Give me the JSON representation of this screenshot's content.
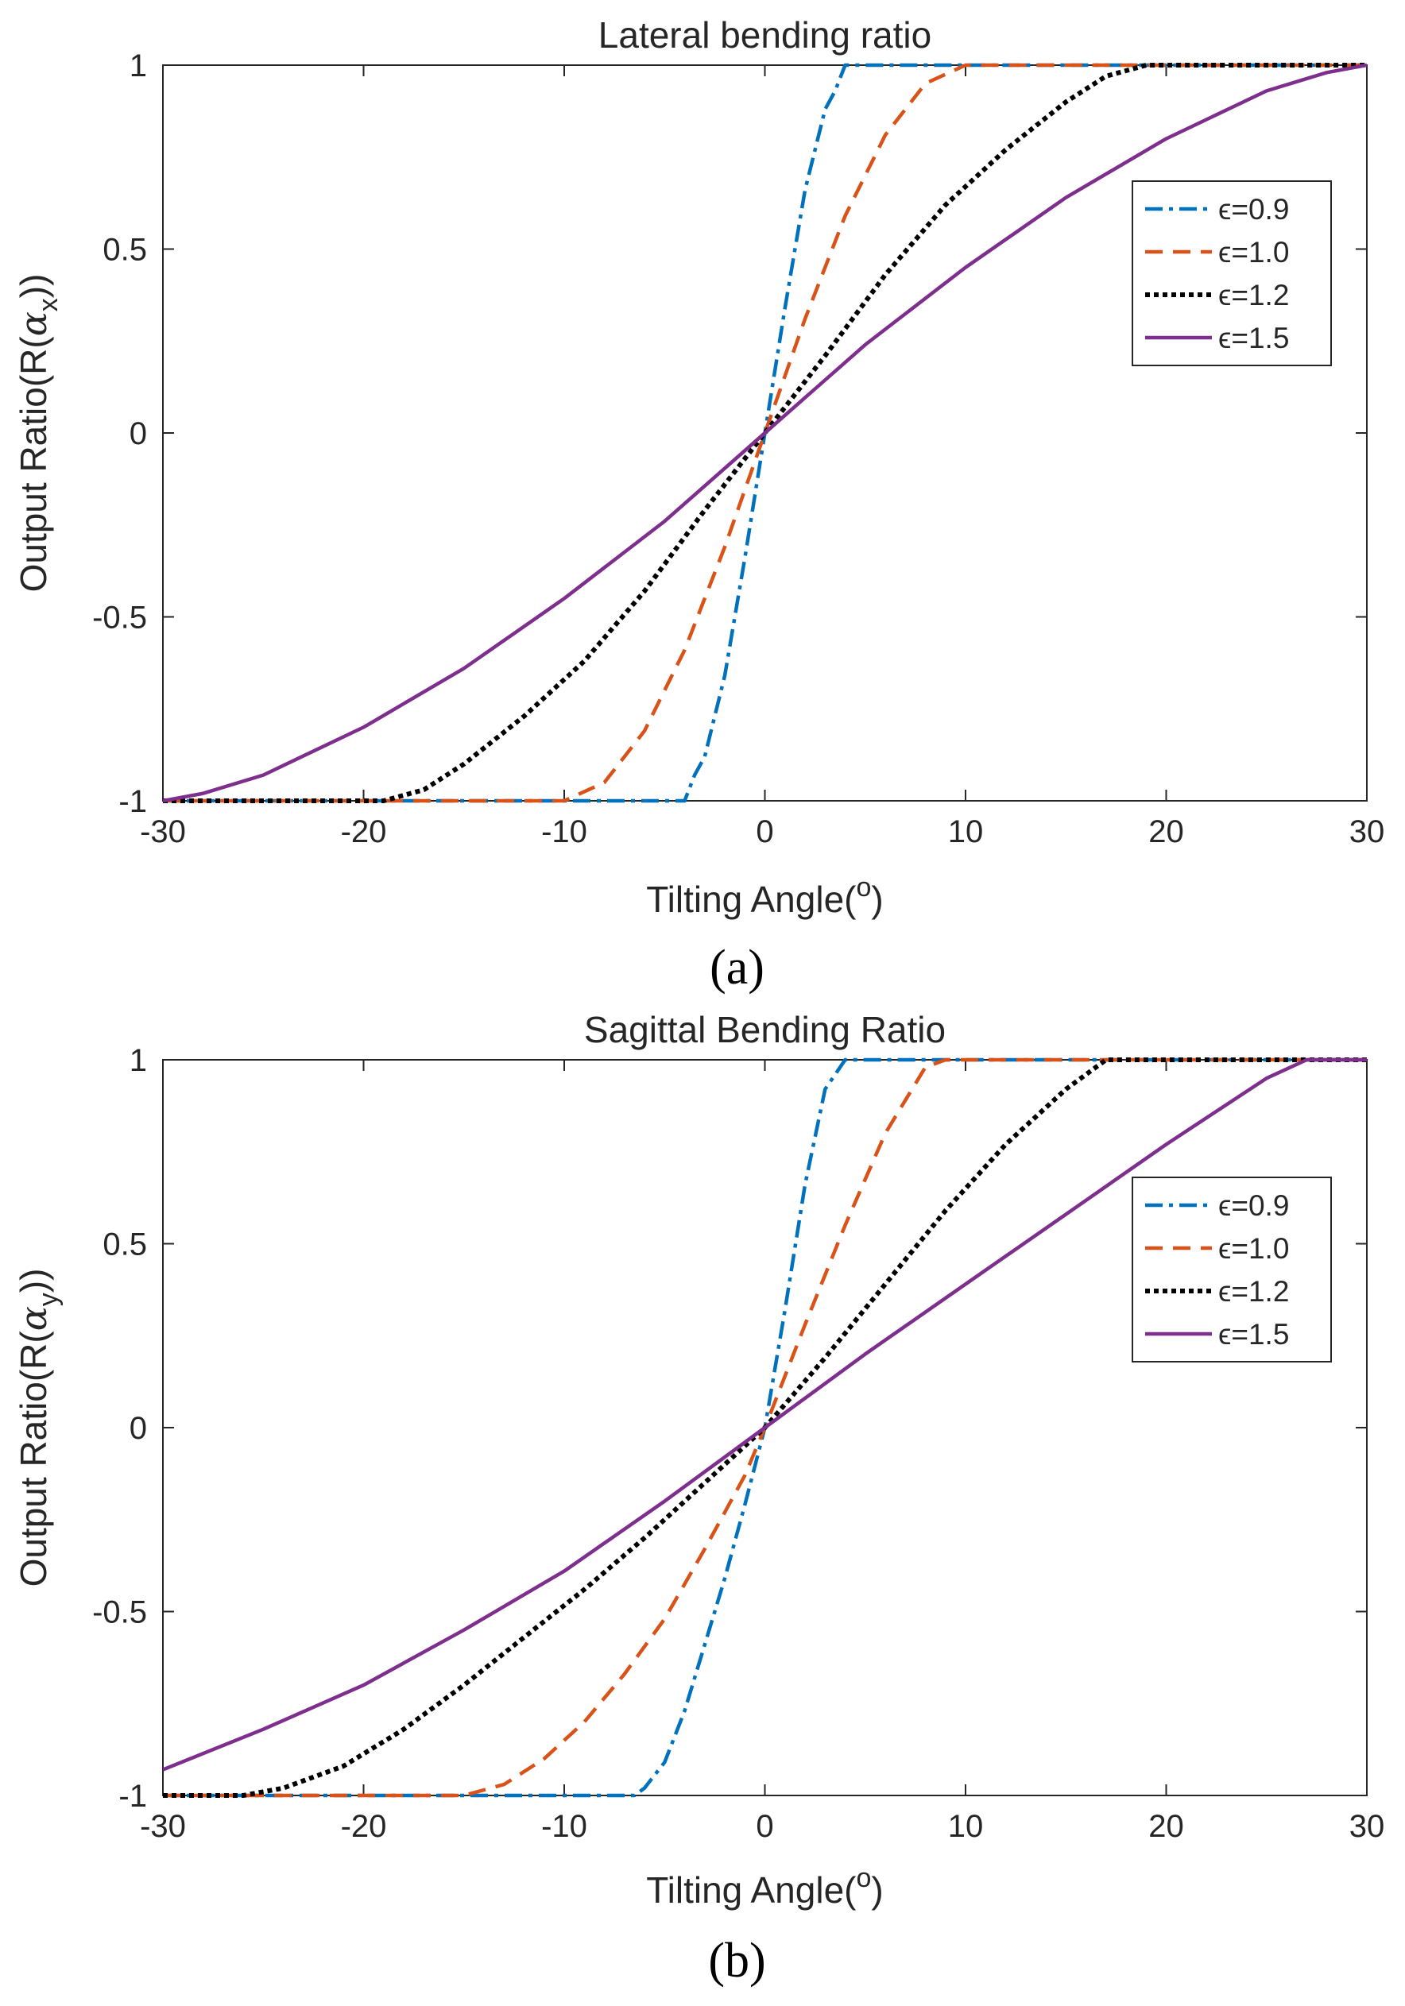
{
  "chart_data": [
    {
      "type": "line",
      "title": "Lateral bending ratio",
      "xlabel": "Tilting Angle(o)",
      "ylabel": "Output Ratio(R(αx))",
      "xlim": [
        -30,
        30
      ],
      "ylim": [
        -1,
        1
      ],
      "xticks": [
        "-30",
        "-20",
        "-10",
        "0",
        "10",
        "20",
        "30"
      ],
      "yticks": [
        "-1",
        "-0.5",
        "0",
        "0.5",
        "1"
      ],
      "legend_position": "upper-right",
      "panel_label": "(a)",
      "series": [
        {
          "name": "ϵ=0.9",
          "color": "#0072BD",
          "dash": "dash-dot",
          "points": [
            [
              -30,
              -1
            ],
            [
              -4,
              -1
            ],
            [
              -3.5,
              -0.93
            ],
            [
              -3,
              -0.88
            ],
            [
              -2,
              -0.66
            ],
            [
              -1,
              -0.34
            ],
            [
              0,
              0
            ],
            [
              1,
              0.34
            ],
            [
              2,
              0.66
            ],
            [
              3,
              0.88
            ],
            [
              3.5,
              0.93
            ],
            [
              4,
              1
            ],
            [
              30,
              1
            ]
          ]
        },
        {
          "name": "ϵ=1.0",
          "color": "#D95319",
          "dash": "dashed",
          "points": [
            [
              -30,
              -1
            ],
            [
              -10,
              -1
            ],
            [
              -8,
              -0.95
            ],
            [
              -6,
              -0.81
            ],
            [
              -4,
              -0.59
            ],
            [
              -2,
              -0.31
            ],
            [
              0,
              0
            ],
            [
              2,
              0.31
            ],
            [
              4,
              0.59
            ],
            [
              6,
              0.81
            ],
            [
              8,
              0.95
            ],
            [
              10,
              1
            ],
            [
              30,
              1
            ]
          ]
        },
        {
          "name": "ϵ=1.2",
          "color": "#000000",
          "dash": "dotted",
          "points": [
            [
              -30,
              -1
            ],
            [
              -19,
              -1
            ],
            [
              -17,
              -0.97
            ],
            [
              -15,
              -0.9
            ],
            [
              -12,
              -0.77
            ],
            [
              -9,
              -0.62
            ],
            [
              -6,
              -0.43
            ],
            [
              -3,
              -0.21
            ],
            [
              0,
              0
            ],
            [
              3,
              0.21
            ],
            [
              6,
              0.43
            ],
            [
              9,
              0.62
            ],
            [
              12,
              0.77
            ],
            [
              15,
              0.9
            ],
            [
              17,
              0.97
            ],
            [
              19,
              1
            ],
            [
              30,
              1
            ]
          ]
        },
        {
          "name": "ϵ=1.5",
          "color": "#7E2F8E",
          "dash": "solid",
          "points": [
            [
              -30,
              -1
            ],
            [
              -28,
              -0.98
            ],
            [
              -25,
              -0.93
            ],
            [
              -20,
              -0.8
            ],
            [
              -15,
              -0.64
            ],
            [
              -10,
              -0.45
            ],
            [
              -5,
              -0.24
            ],
            [
              0,
              0
            ],
            [
              5,
              0.24
            ],
            [
              10,
              0.45
            ],
            [
              15,
              0.64
            ],
            [
              20,
              0.8
            ],
            [
              25,
              0.93
            ],
            [
              28,
              0.98
            ],
            [
              30,
              1
            ]
          ]
        }
      ]
    },
    {
      "type": "line",
      "title": "Sagittal Bending Ratio",
      "xlabel": "Tilting Angle(o)",
      "ylabel": "Output Ratio(R(αy))",
      "xlim": [
        -30,
        30
      ],
      "ylim": [
        -1,
        1
      ],
      "xticks": [
        "-30",
        "-20",
        "-10",
        "0",
        "10",
        "20",
        "30"
      ],
      "yticks": [
        "-1",
        "-0.5",
        "0",
        "0.5",
        "1"
      ],
      "legend_position": "upper-right",
      "panel_label": "(b)",
      "series": [
        {
          "name": "ϵ=0.9",
          "color": "#0072BD",
          "dash": "dash-dot",
          "points": [
            [
              -30,
              -1
            ],
            [
              -6.5,
              -1
            ],
            [
              -6,
              -0.98
            ],
            [
              -5,
              -0.91
            ],
            [
              -4,
              -0.77
            ],
            [
              -3,
              -0.59
            ],
            [
              -2,
              -0.41
            ],
            [
              -1,
              -0.21
            ],
            [
              0,
              0
            ],
            [
              1,
              0.32
            ],
            [
              2,
              0.66
            ],
            [
              3,
              0.92
            ],
            [
              4,
              1
            ],
            [
              30,
              1
            ]
          ]
        },
        {
          "name": "ϵ=1.0",
          "color": "#D95319",
          "dash": "dashed",
          "points": [
            [
              -30,
              -1
            ],
            [
              -15,
              -1
            ],
            [
              -13,
              -0.97
            ],
            [
              -11,
              -0.9
            ],
            [
              -9,
              -0.8
            ],
            [
              -7,
              -0.67
            ],
            [
              -5,
              -0.52
            ],
            [
              -3,
              -0.33
            ],
            [
              -1,
              -0.13
            ],
            [
              0,
              0
            ],
            [
              2,
              0.28
            ],
            [
              4,
              0.55
            ],
            [
              6,
              0.8
            ],
            [
              8,
              0.98
            ],
            [
              9,
              1
            ],
            [
              30,
              1
            ]
          ]
        },
        {
          "name": "ϵ=1.2",
          "color": "#000000",
          "dash": "dotted",
          "points": [
            [
              -30,
              -1
            ],
            [
              -26,
              -1
            ],
            [
              -24,
              -0.98
            ],
            [
              -21,
              -0.92
            ],
            [
              -18,
              -0.82
            ],
            [
              -15,
              -0.7
            ],
            [
              -12,
              -0.57
            ],
            [
              -9,
              -0.44
            ],
            [
              -6,
              -0.3
            ],
            [
              -3,
              -0.15
            ],
            [
              0,
              0
            ],
            [
              3,
              0.19
            ],
            [
              6,
              0.39
            ],
            [
              9,
              0.59
            ],
            [
              12,
              0.77
            ],
            [
              15,
              0.92
            ],
            [
              17,
              1
            ],
            [
              30,
              1
            ]
          ]
        },
        {
          "name": "ϵ=1.5",
          "color": "#7E2F8E",
          "dash": "solid",
          "points": [
            [
              -30,
              -0.93
            ],
            [
              -25,
              -0.82
            ],
            [
              -20,
              -0.7
            ],
            [
              -15,
              -0.55
            ],
            [
              -10,
              -0.39
            ],
            [
              -5,
              -0.2
            ],
            [
              0,
              0
            ],
            [
              5,
              0.2
            ],
            [
              10,
              0.39
            ],
            [
              15,
              0.58
            ],
            [
              20,
              0.77
            ],
            [
              25,
              0.95
            ],
            [
              27,
              1
            ],
            [
              30,
              1
            ]
          ]
        }
      ]
    }
  ]
}
